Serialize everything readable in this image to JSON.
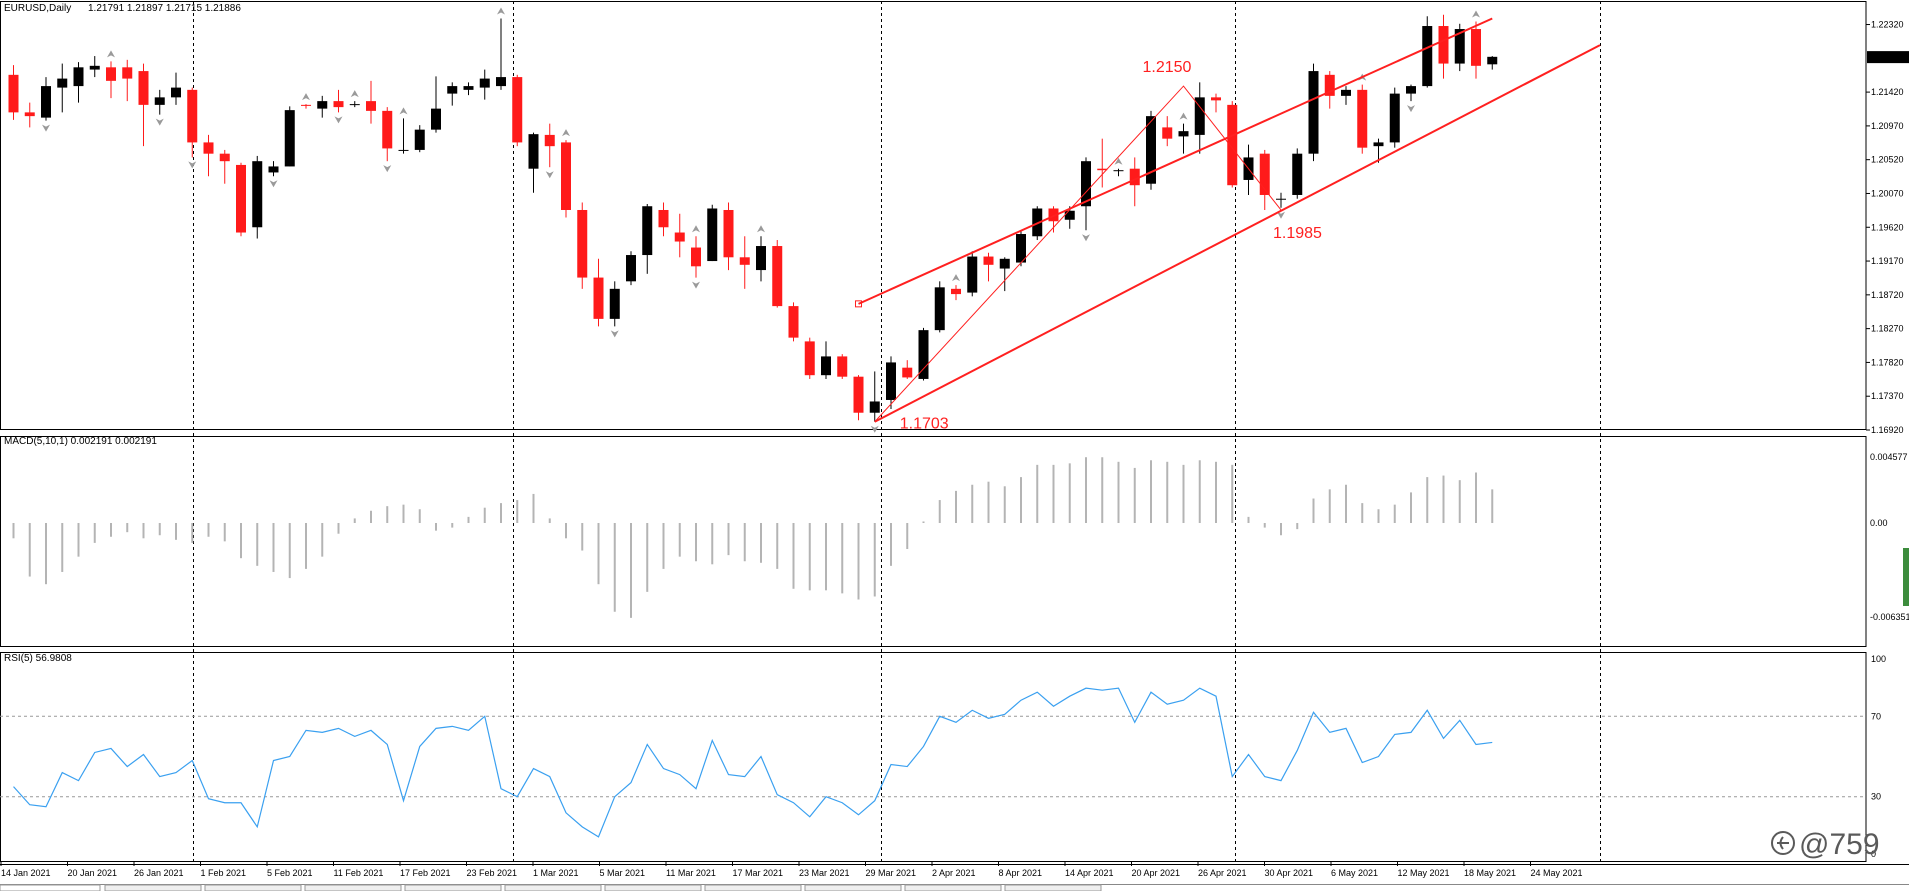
{
  "window": {
    "symbol_label": "EURUSD,Daily",
    "ohlc_label": "1.21791 1.21897 1.21715 1.21886",
    "watermark": "@759"
  },
  "colors": {
    "bull": "#000000",
    "bear": "#ff1a1a",
    "channel": "#ff2020",
    "macd": "#b4b4b4",
    "rsi": "#3aa0f0",
    "grid": "#000000"
  },
  "chart_data": [
    {
      "type": "candlestick",
      "title": "EURUSD,Daily",
      "price_ticks": [
        "1.22320",
        "1.21886",
        "1.21420",
        "1.20970",
        "1.20520",
        "1.20070",
        "1.19620",
        "1.19170",
        "1.18720",
        "1.18270",
        "1.17820",
        "1.17370",
        "1.16920"
      ],
      "current_price_label": "1.21886",
      "date_labels": [
        "14 Jan 2021",
        "20 Jan 2021",
        "26 Jan 2021",
        "1 Feb 2021",
        "5 Feb 2021",
        "11 Feb 2021",
        "17 Feb 2021",
        "23 Feb 2021",
        "1 Mar 2021",
        "5 Mar 2021",
        "11 Mar 2021",
        "17 Mar 2021",
        "23 Mar 2021",
        "29 Mar 2021",
        "2 Apr 2021",
        "8 Apr 2021",
        "14 Apr 2021",
        "20 Apr 2021",
        "26 Apr 2021",
        "30 Apr 2021",
        "6 May 2021",
        "12 May 2021",
        "18 May 2021",
        "24 May 2021"
      ],
      "ylim": [
        1.1692,
        1.2262
      ],
      "candles": [
        [
          1.2165,
          1.2178,
          1.2105,
          1.2115
        ],
        [
          1.2115,
          1.2128,
          1.2095,
          1.211
        ],
        [
          1.2108,
          1.2162,
          1.2104,
          1.215
        ],
        [
          1.2148,
          1.218,
          1.2115,
          1.216
        ],
        [
          1.215,
          1.2182,
          1.2128,
          1.2175
        ],
        [
          1.2172,
          1.219,
          1.2162,
          1.2177
        ],
        [
          1.2175,
          1.2183,
          1.2134,
          1.2157
        ],
        [
          1.2175,
          1.2185,
          1.213,
          1.216
        ],
        [
          1.217,
          1.218,
          1.207,
          1.2125
        ],
        [
          1.2125,
          1.2145,
          1.2112,
          1.2135
        ],
        [
          1.2135,
          1.2168,
          1.2125,
          1.2148
        ],
        [
          1.2145,
          1.2148,
          1.2055,
          1.2075
        ],
        [
          1.2075,
          1.2085,
          1.203,
          1.206
        ],
        [
          1.206,
          1.2065,
          1.202,
          1.205
        ],
        [
          1.2045,
          1.2048,
          1.195,
          1.1955
        ],
        [
          1.1962,
          1.2057,
          1.1947,
          1.205
        ],
        [
          1.2035,
          1.205,
          1.203,
          1.2043
        ],
        [
          1.2043,
          1.2123,
          1.2043,
          1.2118
        ],
        [
          1.2125,
          1.2126,
          1.212,
          1.2124
        ],
        [
          1.212,
          1.2137,
          1.2108,
          1.213
        ],
        [
          1.213,
          1.2145,
          1.2115,
          1.2122
        ],
        [
          1.2125,
          1.213,
          1.2122,
          1.2126
        ],
        [
          1.213,
          1.2157,
          1.21,
          1.2117
        ],
        [
          1.2117,
          1.2122,
          1.205,
          1.2067
        ],
        [
          1.2065,
          1.2107,
          1.206,
          1.2065
        ],
        [
          1.2065,
          1.2098,
          1.2062,
          1.2092
        ],
        [
          1.2092,
          1.2163,
          1.2088,
          1.212
        ],
        [
          1.214,
          1.2155,
          1.2124,
          1.215
        ],
        [
          1.2145,
          1.2155,
          1.2138,
          1.215
        ],
        [
          1.2148,
          1.2172,
          1.2132,
          1.216
        ],
        [
          1.215,
          1.224,
          1.2145,
          1.2162
        ],
        [
          1.2162,
          1.2165,
          1.207,
          1.2075
        ],
        [
          1.204,
          1.2088,
          1.2008,
          1.2086
        ],
        [
          1.2085,
          1.21,
          1.2042,
          1.207
        ],
        [
          1.2075,
          1.2078,
          1.1975,
          1.1985
        ],
        [
          1.1985,
          1.1995,
          1.188,
          1.1895
        ],
        [
          1.1895,
          1.192,
          1.183,
          1.184
        ],
        [
          1.184,
          1.189,
          1.183,
          1.188
        ],
        [
          1.189,
          1.193,
          1.1885,
          1.1925
        ],
        [
          1.1925,
          1.1993,
          1.19,
          1.199
        ],
        [
          1.1985,
          1.1995,
          1.195,
          1.1962
        ],
        [
          1.1955,
          1.198,
          1.1922,
          1.1943
        ],
        [
          1.1935,
          1.195,
          1.1895,
          1.191
        ],
        [
          1.1917,
          1.1992,
          1.1917,
          1.1987
        ],
        [
          1.1985,
          1.1995,
          1.1905,
          1.1922
        ],
        [
          1.1922,
          1.195,
          1.188,
          1.1912
        ],
        [
          1.1905,
          1.195,
          1.189,
          1.1937
        ],
        [
          1.1937,
          1.1945,
          1.1855,
          1.1857
        ],
        [
          1.1857,
          1.1862,
          1.181,
          1.1815
        ],
        [
          1.181,
          1.1815,
          1.176,
          1.1765
        ],
        [
          1.1765,
          1.181,
          1.176,
          1.179
        ],
        [
          1.179,
          1.1793,
          1.176,
          1.1763
        ],
        [
          1.1763,
          1.1765,
          1.1705,
          1.1715
        ],
        [
          1.1715,
          1.177,
          1.1703,
          1.173
        ],
        [
          1.1732,
          1.179,
          1.172,
          1.1782
        ],
        [
          1.1775,
          1.1785,
          1.176,
          1.1762
        ],
        [
          1.176,
          1.1828,
          1.1758,
          1.1825
        ],
        [
          1.1825,
          1.189,
          1.1822,
          1.1882
        ],
        [
          1.188,
          1.1885,
          1.1865,
          1.1873
        ],
        [
          1.1875,
          1.193,
          1.187,
          1.1923
        ],
        [
          1.1923,
          1.1928,
          1.189,
          1.1912
        ],
        [
          1.1907,
          1.1922,
          1.1877,
          1.192
        ],
        [
          1.1915,
          1.1958,
          1.191,
          1.1953
        ],
        [
          1.195,
          1.199,
          1.1945,
          1.1987
        ],
        [
          1.1987,
          1.199,
          1.1955,
          1.197
        ],
        [
          1.1972,
          1.199,
          1.196,
          1.1984
        ],
        [
          1.199,
          1.2055,
          1.1958,
          1.205
        ],
        [
          1.204,
          1.208,
          1.2015,
          1.2038
        ],
        [
          1.2038,
          1.204,
          1.203,
          1.2038
        ],
        [
          1.204,
          1.2055,
          1.199,
          1.2018
        ],
        [
          1.202,
          1.2117,
          1.2012,
          1.211
        ],
        [
          1.2095,
          1.211,
          1.207,
          1.208
        ],
        [
          1.2083,
          1.21,
          1.206,
          1.209
        ],
        [
          1.2085,
          1.2155,
          1.206,
          1.2135
        ],
        [
          1.2135,
          1.214,
          1.2115,
          1.2131
        ],
        [
          1.2125,
          1.213,
          1.2015,
          1.2018
        ],
        [
          1.2025,
          1.2072,
          1.2005,
          1.2055
        ],
        [
          1.206,
          1.2065,
          1.1985,
          1.2005
        ],
        [
          1.2,
          1.2008,
          1.1988,
          1.2
        ],
        [
          1.2005,
          1.2067,
          1.2,
          1.206
        ],
        [
          1.206,
          1.218,
          1.205,
          1.217
        ],
        [
          1.2165,
          1.217,
          1.212,
          1.2137
        ],
        [
          1.2137,
          1.215,
          1.2125,
          1.2145
        ],
        [
          1.2145,
          1.2152,
          1.206,
          1.2068
        ],
        [
          1.207,
          1.208,
          1.2048,
          1.2075
        ],
        [
          1.2075,
          1.2148,
          1.2068,
          1.214
        ],
        [
          1.214,
          1.2152,
          1.213,
          1.215
        ],
        [
          1.215,
          1.2243,
          1.2148,
          1.223
        ],
        [
          1.223,
          1.2245,
          1.216,
          1.218
        ],
        [
          1.218,
          1.2233,
          1.217,
          1.2226
        ],
        [
          1.2226,
          1.2236,
          1.216,
          1.2177
        ],
        [
          1.2179,
          1.219,
          1.2172,
          1.2189
        ]
      ],
      "channel": {
        "upper": [
          [
            1.186,
            52
          ],
          [
            1.224,
            91
          ]
        ],
        "lower": [
          [
            1.1703,
            53
          ],
          [
            1.222,
            99
          ]
        ]
      },
      "annotations": [
        {
          "text": "1.1703",
          "index": 53,
          "price": 1.1703
        },
        {
          "text": "1.2150",
          "index": 72,
          "price": 1.215
        },
        {
          "text": "1.1985",
          "index": 78,
          "price": 1.1985
        }
      ]
    },
    {
      "type": "bar",
      "title": "MACD(5,10,1) 0.002191 0.002191",
      "axis_labels": [
        "0.004577",
        "0.00",
        "-0.006351"
      ],
      "ylim": [
        -0.006351,
        0.004577
      ],
      "values": [
        -0.001,
        -0.0035,
        -0.004,
        -0.0032,
        -0.0022,
        -0.0013,
        -0.0009,
        -0.0006,
        -0.001,
        -0.0008,
        -0.0011,
        -0.0013,
        -0.0009,
        -0.0012,
        -0.0023,
        -0.0028,
        -0.0032,
        -0.0036,
        -0.003,
        -0.0022,
        -0.0007,
        0.0003,
        0.0008,
        0.0011,
        0.0012,
        0.0009,
        -0.0005,
        -0.0003,
        0.0004,
        0.001,
        0.0013,
        0.0015,
        0.0019,
        0.0003,
        -0.001,
        -0.0018,
        -0.004,
        -0.0058,
        -0.0062,
        -0.0045,
        -0.003,
        -0.0022,
        -0.0025,
        -0.0027,
        -0.0021,
        -0.0025,
        -0.0026,
        -0.003,
        -0.0043,
        -0.0044,
        -0.0044,
        -0.0046,
        -0.005,
        -0.0048,
        -0.0028,
        -0.0017,
        0.0001,
        0.0015,
        0.0021,
        0.0025,
        0.0027,
        0.0024,
        0.003,
        0.0038,
        0.0038,
        0.0039,
        0.0043,
        0.0043,
        0.004,
        0.0036,
        0.0041,
        0.004,
        0.0038,
        0.0041,
        0.004,
        0.0038,
        0.0004,
        -0.0003,
        -0.0008,
        -0.0004,
        0.0016,
        0.0022,
        0.0025,
        0.0013,
        0.0009,
        0.0012,
        0.002,
        0.003,
        0.0031,
        0.0028,
        0.0033,
        0.0022
      ]
    },
    {
      "type": "line",
      "title": "RSI(5) 56.9808",
      "axis_labels": [
        "100",
        "70",
        "30",
        "0"
      ],
      "ylim": [
        0,
        100
      ],
      "levels": [
        70,
        30
      ],
      "values": [
        35,
        26,
        25,
        42,
        38,
        52,
        54,
        45,
        51,
        40,
        42,
        48,
        29,
        27,
        27,
        15,
        48,
        50,
        63,
        62,
        64,
        60,
        63,
        56,
        28,
        55,
        64,
        65,
        63,
        70,
        34,
        30,
        44,
        40,
        22,
        15,
        10,
        30,
        37,
        56,
        44,
        41,
        34,
        58,
        41,
        40,
        50,
        31,
        27,
        20,
        30,
        27,
        21,
        28,
        46,
        45,
        55,
        70,
        67,
        73,
        69,
        71,
        78,
        82,
        75,
        80,
        84,
        83,
        84,
        67,
        82,
        76,
        78,
        84,
        80,
        40,
        51,
        40,
        38,
        53,
        72,
        62,
        64,
        47,
        50,
        61,
        62,
        73,
        59,
        68,
        56,
        57
      ]
    }
  ],
  "tabs": [
    "",
    "",
    "",
    "",
    "",
    "",
    "",
    "",
    "",
    "",
    ""
  ]
}
